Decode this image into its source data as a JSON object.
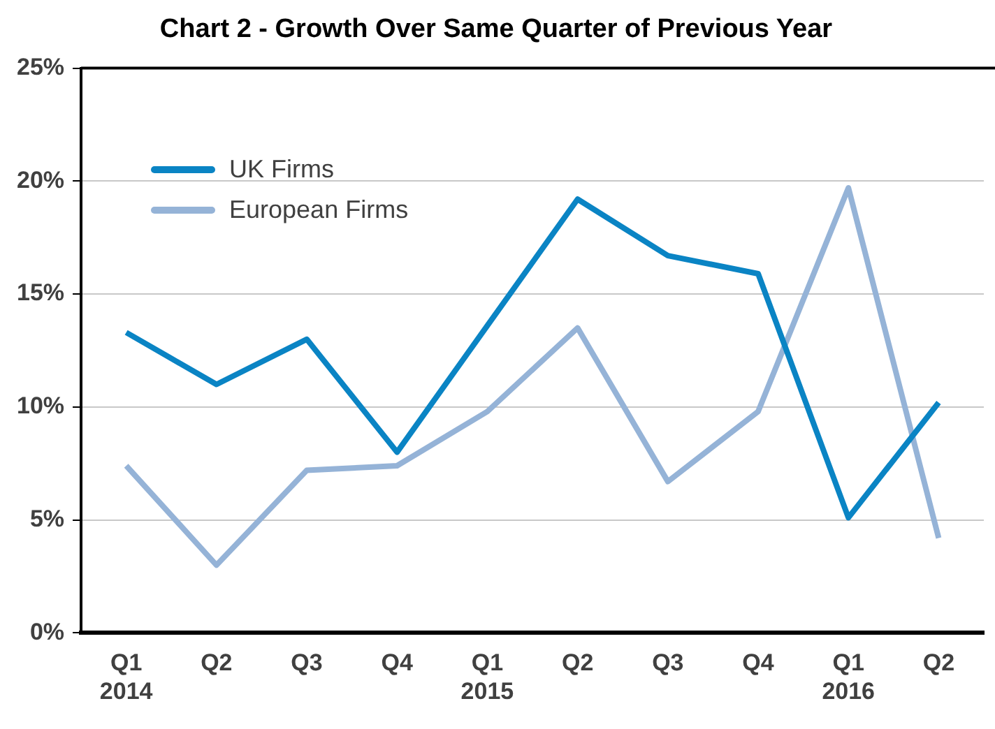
{
  "chart_data": {
    "type": "line",
    "title": "Chart 2 - Growth Over Same Quarter of Previous Year",
    "categories": [
      "Q1 2014",
      "Q2",
      "Q3",
      "Q4",
      "Q1 2015",
      "Q2",
      "Q3",
      "Q4",
      "Q1 2016",
      "Q2"
    ],
    "series": [
      {
        "name": "UK Firms",
        "color": "#0a84c4",
        "values": [
          13.3,
          11.0,
          13.0,
          8.0,
          13.6,
          19.2,
          16.7,
          15.9,
          5.1,
          10.2
        ]
      },
      {
        "name": "European Firms",
        "color": "#95b3d7",
        "values": [
          7.4,
          3.0,
          7.2,
          7.4,
          9.8,
          13.5,
          6.7,
          9.8,
          19.7,
          4.2
        ]
      }
    ],
    "ylim": [
      0,
      25
    ],
    "yticks": [
      {
        "value": 0,
        "label": "0%"
      },
      {
        "value": 5,
        "label": "5%"
      },
      {
        "value": 10,
        "label": "10%"
      },
      {
        "value": 15,
        "label": "15%"
      },
      {
        "value": 20,
        "label": "20%"
      },
      {
        "value": 25,
        "label": "25%"
      }
    ],
    "grid": "y",
    "legend": "top left",
    "marker": "none",
    "line_style": "solid"
  }
}
